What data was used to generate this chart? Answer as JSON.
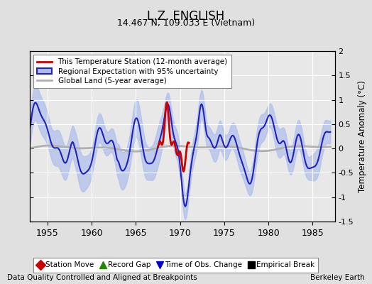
{
  "title": "L.Z. ENGLISH",
  "subtitle": "14.467 N, 109.033 E (Vietnam)",
  "xlabel_bottom": "Data Quality Controlled and Aligned at Breakpoints",
  "xlabel_right": "Berkeley Earth",
  "ylabel": "Temperature Anomaly (°C)",
  "xlim": [
    1953.0,
    1987.5
  ],
  "ylim": [
    -1.5,
    2.0
  ],
  "yticks": [
    -1.5,
    -1.0,
    -0.5,
    0.0,
    0.5,
    1.0,
    1.5,
    2.0
  ],
  "xticks": [
    1955,
    1960,
    1965,
    1970,
    1975,
    1980,
    1985
  ],
  "bg_color": "#e0e0e0",
  "plot_bg_color": "#e8e8e8",
  "grid_color": "white",
  "regional_color": "#2222bb",
  "regional_fill_color": "#aabbee",
  "station_color": "#cc0000",
  "global_color": "#b0b0b0",
  "legend_items": [
    {
      "label": "This Temperature Station (12-month average)",
      "color": "#cc0000",
      "lw": 2
    },
    {
      "label": "Regional Expectation with 95% uncertainty",
      "color": "#2222bb",
      "lw": 2
    },
    {
      "label": "Global Land (5-year average)",
      "color": "#b0b0b0",
      "lw": 2
    }
  ],
  "bottom_legend": [
    {
      "label": "Station Move",
      "color": "#cc0000",
      "marker": "D"
    },
    {
      "label": "Record Gap",
      "color": "#228800",
      "marker": "^"
    },
    {
      "label": "Time of Obs. Change",
      "color": "#0000cc",
      "marker": "v"
    },
    {
      "label": "Empirical Break",
      "color": "#000000",
      "marker": "s"
    }
  ]
}
